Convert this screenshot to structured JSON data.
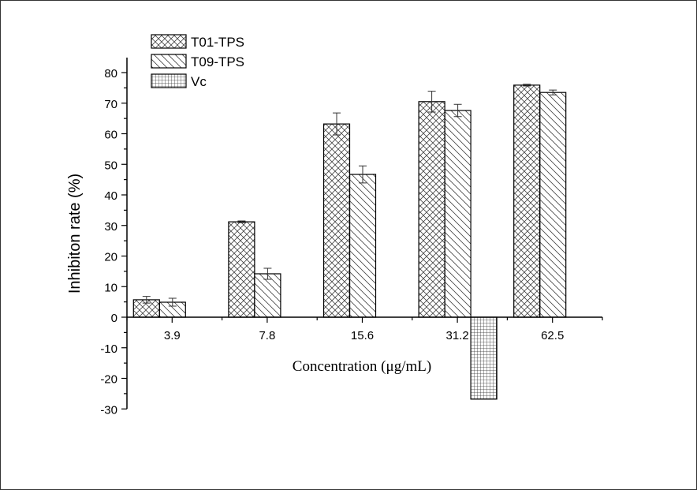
{
  "chart_data": {
    "type": "bar",
    "title": "",
    "xlabel": "Concentration (μg/mL)",
    "ylabel": "Inhibiton rate (%)",
    "categories": [
      "3.9",
      "7.8",
      "15.6",
      "31.2",
      "62.5"
    ],
    "ylim": [
      -30,
      80
    ],
    "yticks": [
      -30,
      -20,
      -10,
      0,
      10,
      20,
      30,
      40,
      50,
      60,
      70,
      80
    ],
    "grid": false,
    "legend_position": "top-left",
    "series": [
      {
        "name": "T01-TPS",
        "pattern": "crosshatch",
        "values": [
          5.7,
          31.2,
          63.2,
          70.5,
          75.9
        ],
        "errors": [
          1.1,
          0.3,
          3.6,
          3.4,
          0.3
        ]
      },
      {
        "name": "T09-TPS",
        "pattern": "diagonal",
        "values": [
          4.9,
          14.2,
          46.7,
          67.6,
          73.5
        ],
        "errors": [
          1.3,
          1.8,
          2.8,
          2.0,
          0.8
        ]
      },
      {
        "name": "Vc",
        "pattern": "grid",
        "values": [
          null,
          null,
          null,
          -26.8,
          null
        ],
        "errors": [
          null,
          null,
          null,
          null,
          null
        ]
      }
    ]
  }
}
